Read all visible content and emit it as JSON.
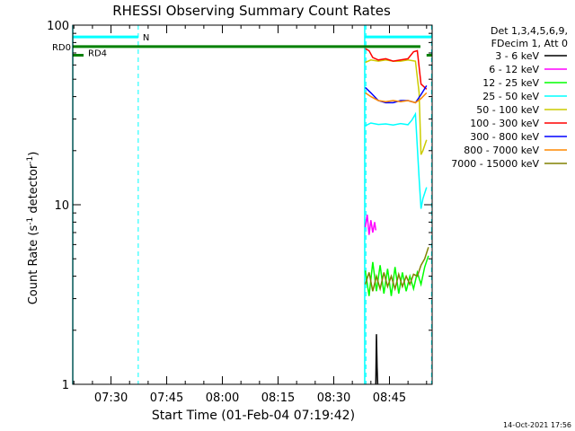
{
  "chart_data": {
    "type": "line",
    "title": "RHESSI Observing Summary Count Rates",
    "xlabel": "Start Time (01-Feb-04 07:19:42)",
    "ylabel_main": "Count Rate (s",
    "ylabel_sup1": "-1",
    "ylabel_mid": " detector",
    "ylabel_sup2": "-1",
    "ylabel_end": ")",
    "footer": "14-Oct-2021 17:56",
    "xlim": [
      "07:19:42",
      "08:56:30"
    ],
    "ylim": [
      1,
      100
    ],
    "yscale": "log",
    "x_ticks": [
      "07:30",
      "07:45",
      "08:00",
      "08:15",
      "08:30",
      "08:45"
    ],
    "y_ticks": [
      "1",
      "10",
      "100"
    ],
    "legend": {
      "header": [
        "Det 1,3,4,5,6,9,",
        "FDecim 1, Att 0"
      ],
      "placement": "right",
      "entries": [
        {
          "label": "3 - 6 keV",
          "color": "#000000"
        },
        {
          "label": "6 - 12 keV",
          "color": "#ff00ff"
        },
        {
          "label": "12 - 25 keV",
          "color": "#00ff00"
        },
        {
          "label": "25 - 50 keV",
          "color": "#00ffff"
        },
        {
          "label": "50 - 100 keV",
          "color": "#cccc00"
        },
        {
          "label": "100 - 300 keV",
          "color": "#ff0000"
        },
        {
          "label": "300 - 800 keV",
          "color": "#0000ff"
        },
        {
          "label": "800 - 7000 keV",
          "color": "#ff8800"
        },
        {
          "label": "7000 - 15000 keV",
          "color": "#808000"
        }
      ]
    },
    "flags": [
      {
        "label": "RD0",
        "start": "07:19:42",
        "end": "08:53:20",
        "value": 76,
        "color": "#008000"
      },
      {
        "label": "RD4",
        "start": "07:19:42",
        "end": "07:19:42",
        "value": 68,
        "color": "#008000"
      },
      {
        "label": "N",
        "start": "07:19:42",
        "end": "07:37:20",
        "value": 86,
        "color": "#00ffff"
      }
    ],
    "flag_extra": [
      {
        "start": "08:38:20",
        "end": "08:56:20",
        "value": 86,
        "color": "#00ffff"
      },
      {
        "start": "08:55:00",
        "end": "08:56:30",
        "value": 68,
        "color": "#008000"
      }
    ],
    "dashed_markers": [
      "07:37:20",
      "08:38:40",
      "08:56:20"
    ],
    "solid_markers": [
      "07:19:42",
      "08:38:20"
    ],
    "series": [
      {
        "name": "3 - 6 keV",
        "color": "#000000",
        "points": [
          [
            "08:41:20",
            1.0
          ],
          [
            "08:41:30",
            1.9
          ],
          [
            "08:41:40",
            1.25
          ],
          [
            "08:41:50",
            1.0
          ]
        ]
      },
      {
        "name": "6 - 12 keV",
        "color": "#ff00ff",
        "points": [
          [
            "08:38:30",
            7.5
          ],
          [
            "08:39:00",
            8.8
          ],
          [
            "08:39:30",
            6.8
          ],
          [
            "08:40:00",
            8.2
          ],
          [
            "08:40:30",
            7.0
          ],
          [
            "08:41:00",
            8.0
          ],
          [
            "08:41:20",
            7.2
          ]
        ]
      },
      {
        "name": "12 - 25 keV",
        "color": "#00ff00",
        "points": [
          [
            "08:38:30",
            4.3
          ],
          [
            "08:39:30",
            3.1
          ],
          [
            "08:40:30",
            4.8
          ],
          [
            "08:41:30",
            3.3
          ],
          [
            "08:42:30",
            4.6
          ],
          [
            "08:43:30",
            3.2
          ],
          [
            "08:44:30",
            4.4
          ],
          [
            "08:45:30",
            3.1
          ],
          [
            "08:46:30",
            4.5
          ],
          [
            "08:47:30",
            3.2
          ],
          [
            "08:48:30",
            4.2
          ],
          [
            "08:49:30",
            3.3
          ],
          [
            "08:50:30",
            4.0
          ],
          [
            "08:51:30",
            3.4
          ],
          [
            "08:52:30",
            4.2
          ],
          [
            "08:53:30",
            3.6
          ],
          [
            "08:54:30",
            4.5
          ],
          [
            "08:55:30",
            5.2
          ]
        ]
      },
      {
        "name": "25 - 50 keV",
        "color": "#00ffff",
        "points": [
          [
            "08:38:30",
            27.5
          ],
          [
            "08:40:00",
            28.5
          ],
          [
            "08:42:00",
            28.0
          ],
          [
            "08:44:00",
            28.2
          ],
          [
            "08:46:00",
            27.8
          ],
          [
            "08:48:00",
            28.3
          ],
          [
            "08:50:00",
            27.9
          ],
          [
            "08:51:00",
            29.5
          ],
          [
            "08:52:00",
            32.0
          ],
          [
            "08:53:00",
            14.0
          ],
          [
            "08:53:30",
            9.5
          ],
          [
            "08:54:00",
            10.8
          ],
          [
            "08:55:00",
            12.5
          ]
        ]
      },
      {
        "name": "50 - 100 keV",
        "color": "#cccc00",
        "points": [
          [
            "08:38:30",
            62
          ],
          [
            "08:40:00",
            64
          ],
          [
            "08:42:00",
            63
          ],
          [
            "08:44:00",
            64
          ],
          [
            "08:46:00",
            63
          ],
          [
            "08:48:00",
            63
          ],
          [
            "08:50:00",
            64
          ],
          [
            "08:52:00",
            63
          ],
          [
            "08:53:00",
            42
          ],
          [
            "08:53:30",
            19
          ],
          [
            "08:54:00",
            20
          ],
          [
            "08:55:00",
            23
          ]
        ]
      },
      {
        "name": "100 - 300 keV",
        "color": "#ff0000",
        "points": [
          [
            "08:38:30",
            74
          ],
          [
            "08:39:30",
            72
          ],
          [
            "08:40:30",
            66
          ],
          [
            "08:42:00",
            64
          ],
          [
            "08:44:00",
            65
          ],
          [
            "08:46:00",
            63
          ],
          [
            "08:48:00",
            64
          ],
          [
            "08:50:00",
            65
          ],
          [
            "08:51:30",
            71
          ],
          [
            "08:52:30",
            72
          ],
          [
            "08:53:30",
            47
          ],
          [
            "08:55:00",
            44
          ]
        ]
      },
      {
        "name": "300 - 800 keV",
        "color": "#0000ff",
        "points": [
          [
            "08:38:30",
            45
          ],
          [
            "08:40:00",
            42
          ],
          [
            "08:42:00",
            38
          ],
          [
            "08:44:00",
            37
          ],
          [
            "08:46:00",
            37
          ],
          [
            "08:48:00",
            38
          ],
          [
            "08:50:00",
            38
          ],
          [
            "08:52:00",
            37
          ],
          [
            "08:53:30",
            41
          ],
          [
            "08:55:00",
            46
          ]
        ]
      },
      {
        "name": "800 - 7000 keV",
        "color": "#ff8800",
        "points": [
          [
            "08:38:30",
            42
          ],
          [
            "08:40:00",
            40
          ],
          [
            "08:42:00",
            38
          ],
          [
            "08:44:00",
            37.5
          ],
          [
            "08:46:00",
            38
          ],
          [
            "08:48:00",
            37.5
          ],
          [
            "08:50:00",
            38
          ],
          [
            "08:52:00",
            37
          ],
          [
            "08:53:30",
            39
          ],
          [
            "08:55:00",
            42
          ]
        ]
      },
      {
        "name": "7000 - 15000 keV",
        "color": "#808000",
        "points": [
          [
            "08:38:30",
            3.6
          ],
          [
            "08:39:30",
            4.2
          ],
          [
            "08:40:30",
            3.3
          ],
          [
            "08:41:30",
            4.0
          ],
          [
            "08:42:30",
            3.4
          ],
          [
            "08:43:30",
            4.2
          ],
          [
            "08:44:30",
            3.5
          ],
          [
            "08:45:30",
            4.0
          ],
          [
            "08:46:30",
            3.4
          ],
          [
            "08:47:30",
            4.1
          ],
          [
            "08:48:30",
            3.5
          ],
          [
            "08:49:30",
            4.0
          ],
          [
            "08:50:30",
            3.6
          ],
          [
            "08:51:30",
            4.1
          ],
          [
            "08:52:30",
            4.0
          ],
          [
            "08:53:30",
            4.6
          ],
          [
            "08:54:30",
            5.0
          ],
          [
            "08:55:30",
            5.8
          ]
        ]
      }
    ]
  }
}
